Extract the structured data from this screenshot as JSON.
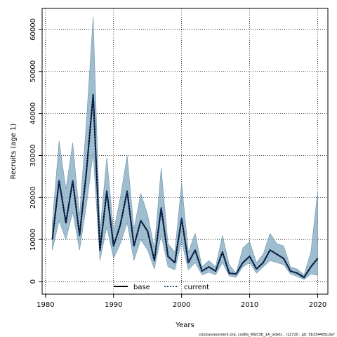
{
  "chart_data": {
    "type": "line",
    "xlabel": "Years",
    "ylabel": "Recruits (age 1)",
    "xlim": [
      1979.5,
      2021.5
    ],
    "ylim": [
      -3000,
      65000
    ],
    "x_ticks": [
      1980,
      1990,
      2000,
      2010,
      2020
    ],
    "x_tick_labels": [
      "1980",
      "1990",
      "2000",
      "2010",
      "2020"
    ],
    "y_ticks": [
      0,
      10000,
      20000,
      30000,
      40000,
      50000,
      60000
    ],
    "y_tick_labels": [
      "0",
      "10000",
      "20000",
      "30000",
      "40000",
      "50000",
      "60000"
    ],
    "grid": true,
    "legend_position": "bottom-center",
    "x": [
      1981,
      1982,
      1983,
      1984,
      1985,
      1986,
      1987,
      1988,
      1989,
      1990,
      1991,
      1992,
      1993,
      1994,
      1995,
      1996,
      1997,
      1998,
      1999,
      2000,
      2001,
      2002,
      2003,
      2004,
      2005,
      2006,
      2007,
      2008,
      2009,
      2010,
      2011,
      2012,
      2013,
      2014,
      2015,
      2016,
      2017,
      2018,
      2019,
      2020
    ],
    "series": [
      {
        "name": "base",
        "style": "solid",
        "values": [
          10000,
          24000,
          14000,
          24000,
          11000,
          26000,
          44500,
          7500,
          21500,
          8500,
          13500,
          21500,
          8500,
          14500,
          12000,
          5000,
          17500,
          6000,
          4500,
          15000,
          4500,
          7500,
          2500,
          3500,
          2500,
          7000,
          2000,
          1800,
          4500,
          6000,
          3000,
          4500,
          7500,
          6500,
          5500,
          2500,
          2000,
          1000,
          3500,
          5500
        ]
      },
      {
        "name": "current",
        "style": "dotted",
        "values": [
          10000,
          24000,
          14000,
          24000,
          11000,
          26000,
          44500,
          7500,
          21500,
          8500,
          13500,
          21500,
          8500,
          14500,
          12000,
          5000,
          17500,
          6000,
          4500,
          15000,
          4500,
          7500,
          2500,
          3500,
          2500,
          7000,
          2000,
          1800,
          4500,
          6000,
          3000,
          4500,
          7500,
          6500,
          5500,
          2500,
          2000,
          1000,
          3500,
          5500
        ]
      }
    ],
    "band": {
      "upper": [
        14000,
        33500,
        22000,
        33000,
        15500,
        38000,
        63000,
        12000,
        29500,
        12000,
        20000,
        30000,
        12500,
        21000,
        16000,
        8000,
        27000,
        9000,
        7000,
        23500,
        7000,
        11500,
        3500,
        5000,
        3500,
        11000,
        4000,
        2000,
        8000,
        9500,
        4500,
        6500,
        11500,
        9000,
        8500,
        3500,
        3000,
        1600,
        7000,
        21500
      ],
      "lower": [
        7500,
        14500,
        10000,
        16500,
        7500,
        18000,
        30500,
        5000,
        13000,
        5500,
        9000,
        14000,
        5000,
        10000,
        7500,
        3000,
        11000,
        3500,
        2800,
        9500,
        2800,
        4500,
        1600,
        2200,
        1600,
        4500,
        1400,
        1000,
        3500,
        4500,
        2000,
        3500,
        5000,
        4500,
        4000,
        1800,
        1200,
        500,
        1800,
        1500
      ],
      "color": "#7ea7bd"
    },
    "footnote": "stockassessment.org,  cod6a_WGCSE_1A_oldets , r12720 ,  git: 5b334405cda7"
  }
}
